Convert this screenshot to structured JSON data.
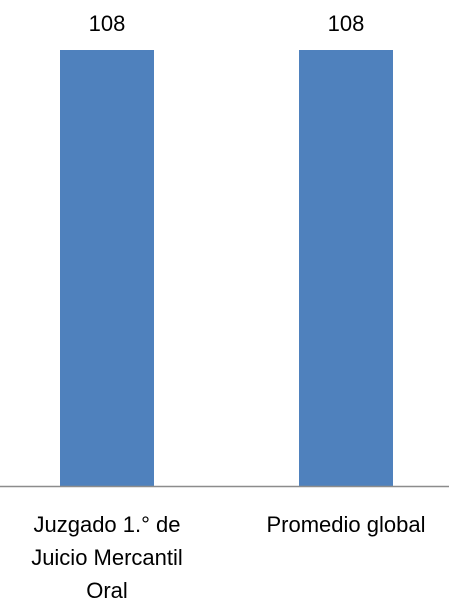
{
  "chart_data": {
    "type": "bar",
    "categories": [
      [
        "Juzgado 1.° de",
        "Juicio Mercantil",
        "Oral"
      ],
      [
        "Promedio global"
      ]
    ],
    "values": [
      108,
      108
    ],
    "data_labels": [
      "108",
      "108"
    ],
    "ylim": [
      0,
      108
    ],
    "bar_color": "#4f81bd",
    "axis_color": "#8c8c8c",
    "grid": false,
    "legend": "none"
  }
}
